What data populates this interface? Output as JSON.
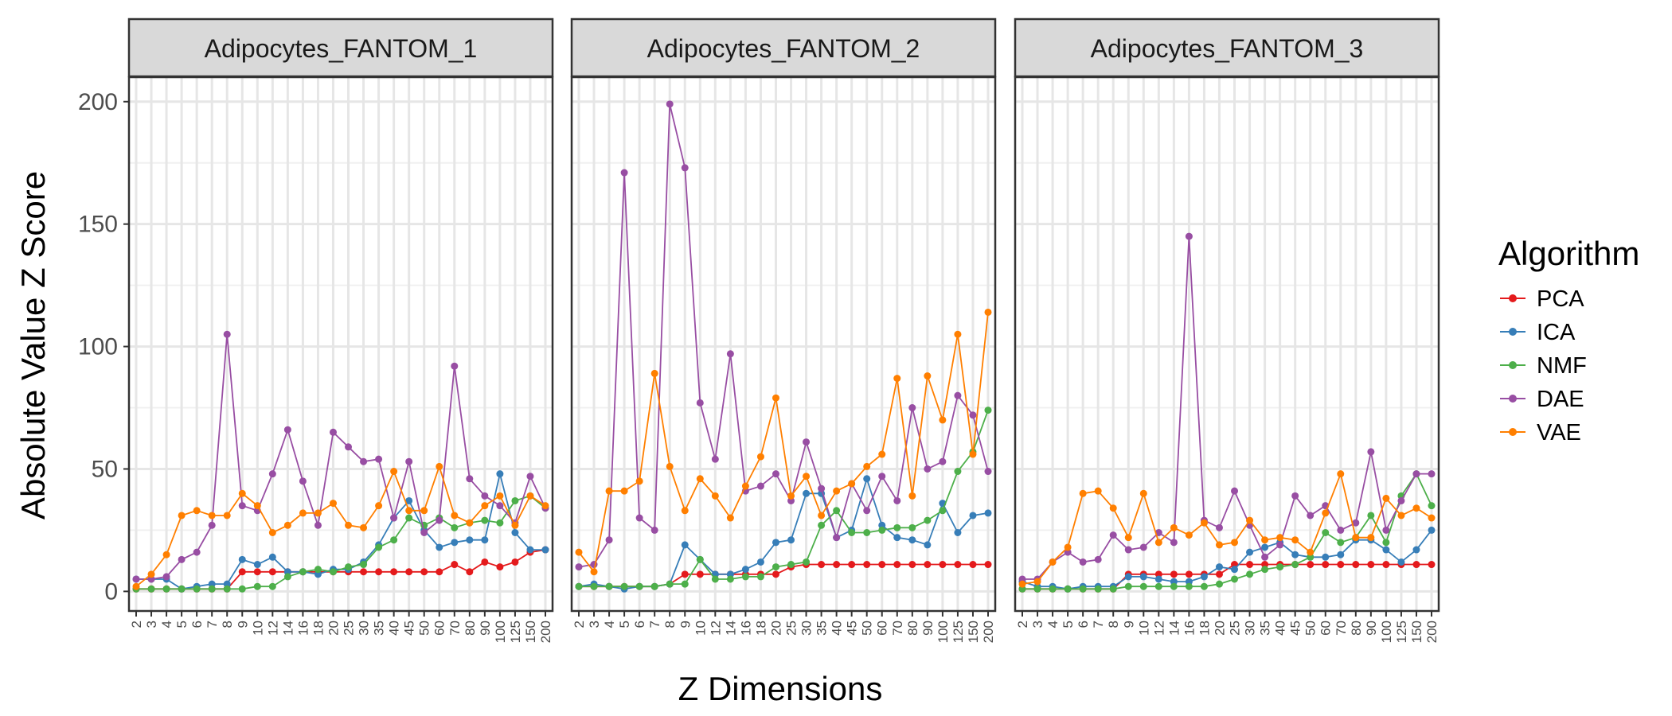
{
  "chart_data": {
    "type": "line",
    "panels": [
      "Adipocytes_FANTOM_1",
      "Adipocytes_FANTOM_2",
      "Adipocytes_FANTOM_3"
    ],
    "categories": [
      "2",
      "3",
      "4",
      "5",
      "6",
      "7",
      "8",
      "9",
      "10",
      "12",
      "14",
      "16",
      "18",
      "20",
      "25",
      "30",
      "35",
      "40",
      "45",
      "50",
      "60",
      "70",
      "80",
      "90",
      "100",
      "125",
      "150",
      "200"
    ],
    "xlabel": "Z Dimensions",
    "ylabel": "Absolute Value Z Score",
    "ylim": [
      -8,
      210
    ],
    "yticks": [
      0,
      50,
      100,
      150,
      200
    ],
    "grid": true,
    "legend_title": "Algorithm",
    "legend_position": "right",
    "colors": {
      "PCA": "#e41a1c",
      "ICA": "#377eb8",
      "NMF": "#4daf4a",
      "DAE": "#984ea3",
      "VAE": "#ff7f00"
    },
    "series": [
      {
        "name": "PCA",
        "panels": [
          [
            1,
            1,
            1,
            1,
            1,
            1,
            1,
            8,
            8,
            8,
            8,
            8,
            8,
            8,
            8,
            8,
            8,
            8,
            8,
            8,
            8,
            11,
            8,
            12,
            10,
            12,
            16,
            17
          ],
          [
            2,
            2,
            2,
            2,
            2,
            2,
            3,
            7,
            7,
            7,
            7,
            7,
            7,
            7,
            10,
            11,
            11,
            11,
            11,
            11,
            11,
            11,
            11,
            11,
            11,
            11,
            11,
            11
          ],
          [
            1,
            1,
            1,
            1,
            1,
            1,
            1,
            7,
            7,
            7,
            7,
            7,
            7,
            7,
            11,
            11,
            11,
            11,
            11,
            11,
            11,
            11,
            11,
            11,
            11,
            11,
            11,
            11
          ]
        ]
      },
      {
        "name": "ICA",
        "panels": [
          [
            5,
            5,
            5,
            1,
            2,
            3,
            3,
            13,
            11,
            14,
            8,
            8,
            7,
            9,
            9,
            12,
            19,
            30,
            37,
            25,
            18,
            20,
            21,
            21,
            48,
            24,
            17,
            17
          ],
          [
            2,
            3,
            2,
            1,
            2,
            2,
            3,
            19,
            13,
            7,
            7,
            9,
            12,
            20,
            21,
            40,
            40,
            22,
            25,
            46,
            27,
            22,
            21,
            19,
            36,
            24,
            31,
            32
          ],
          [
            4,
            2,
            2,
            1,
            2,
            2,
            2,
            6,
            6,
            5,
            4,
            4,
            6,
            10,
            9,
            16,
            18,
            20,
            15,
            14,
            14,
            15,
            21,
            21,
            17,
            12,
            17,
            25
          ]
        ]
      },
      {
        "name": "NMF",
        "panels": [
          [
            1,
            1,
            1,
            1,
            1,
            1,
            1,
            1,
            2,
            2,
            6,
            8,
            9,
            8,
            10,
            11,
            18,
            21,
            30,
            27,
            30,
            26,
            28,
            29,
            28,
            37,
            39,
            34
          ],
          [
            2,
            2,
            2,
            2,
            2,
            2,
            3,
            3,
            13,
            5,
            5,
            6,
            6,
            10,
            11,
            12,
            27,
            33,
            24,
            24,
            25,
            26,
            26,
            29,
            33,
            49,
            57,
            74
          ],
          [
            1,
            1,
            1,
            1,
            1,
            1,
            1,
            2,
            2,
            2,
            2,
            2,
            2,
            3,
            5,
            7,
            9,
            10,
            11,
            14,
            24,
            20,
            22,
            31,
            20,
            39,
            48,
            35
          ]
        ]
      },
      {
        "name": "DAE",
        "panels": [
          [
            5,
            5,
            6,
            13,
            16,
            27,
            105,
            35,
            33,
            48,
            66,
            45,
            27,
            65,
            59,
            53,
            54,
            30,
            53,
            24,
            29,
            92,
            46,
            39,
            35,
            28,
            47,
            34
          ],
          [
            10,
            11,
            21,
            171,
            30,
            25,
            199,
            173,
            77,
            54,
            97,
            41,
            43,
            48,
            37,
            61,
            42,
            22,
            44,
            33,
            47,
            37,
            75,
            50,
            53,
            80,
            72,
            49
          ],
          [
            5,
            5,
            12,
            16,
            12,
            13,
            23,
            17,
            18,
            24,
            20,
            145,
            29,
            26,
            41,
            27,
            14,
            19,
            39,
            31,
            35,
            25,
            28,
            57,
            25,
            37,
            48,
            48
          ]
        ]
      },
      {
        "name": "VAE",
        "panels": [
          [
            2,
            7,
            15,
            31,
            33,
            31,
            31,
            40,
            35,
            24,
            27,
            32,
            32,
            36,
            27,
            26,
            35,
            49,
            33,
            33,
            51,
            31,
            28,
            35,
            39,
            27,
            39,
            35
          ],
          [
            16,
            8,
            41,
            41,
            45,
            89,
            51,
            33,
            46,
            39,
            30,
            43,
            55,
            79,
            39,
            47,
            31,
            41,
            44,
            51,
            56,
            87,
            39,
            88,
            70,
            105,
            56,
            114
          ],
          [
            3,
            4,
            12,
            18,
            40,
            41,
            34,
            22,
            40,
            20,
            26,
            23,
            28,
            19,
            20,
            29,
            21,
            22,
            21,
            16,
            32,
            48,
            22,
            22,
            38,
            31,
            34,
            30
          ]
        ]
      }
    ]
  }
}
